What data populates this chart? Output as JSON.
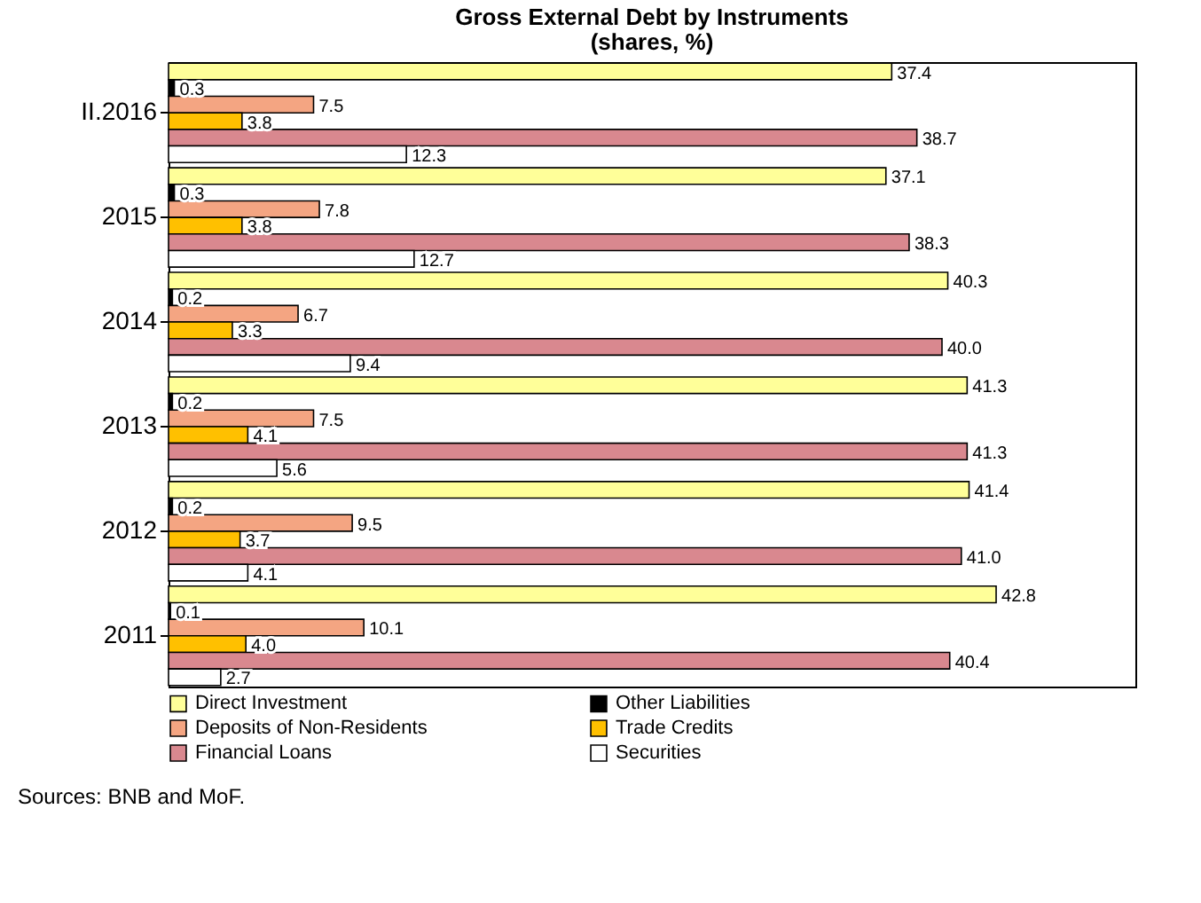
{
  "chart_data": {
    "type": "bar",
    "orientation": "horizontal",
    "title": "Gross External Debt by Instruments",
    "subtitle": "(shares, %)",
    "categories": [
      "II.2016",
      "2015",
      "2014",
      "2013",
      "2012",
      "2011"
    ],
    "series": [
      {
        "name": "Direct Investment",
        "color": "#ffff99",
        "values": [
          37.4,
          37.1,
          40.3,
          41.3,
          41.4,
          42.8
        ],
        "value_labels": [
          "37.4",
          "37.1",
          "40.3",
          "41.3",
          "41.4",
          "42.8"
        ]
      },
      {
        "name": "Other Liabilities",
        "color": "#000000",
        "values": [
          0.3,
          0.3,
          0.2,
          0.2,
          0.2,
          0.1
        ],
        "value_labels": [
          "0.3",
          "0.3",
          "0.2",
          "0.2",
          "0.2",
          "0.1"
        ]
      },
      {
        "name": "Deposits of Non-Residents",
        "color": "#f4a582",
        "values": [
          7.5,
          7.8,
          6.7,
          7.5,
          9.5,
          10.1
        ],
        "value_labels": [
          "7.5",
          "7.8",
          "6.7",
          "7.5",
          "9.5",
          "10.1"
        ]
      },
      {
        "name": "Trade Credits",
        "color": "#ffc000",
        "values": [
          3.8,
          3.8,
          3.3,
          4.1,
          3.7,
          4.0
        ],
        "value_labels": [
          "3.8",
          "3.8",
          "3.3",
          "4.1",
          "3.7",
          "4.0"
        ]
      },
      {
        "name": "Financial Loans",
        "color": "#d9888f",
        "values": [
          38.7,
          38.3,
          40.0,
          41.3,
          41.0,
          40.4
        ],
        "value_labels": [
          "38.7",
          "38.3",
          "40.0",
          "41.3",
          "41.0",
          "40.4"
        ]
      },
      {
        "name": "Securities",
        "color": "#ffffff",
        "values": [
          12.3,
          12.7,
          9.4,
          5.6,
          4.1,
          2.7
        ],
        "value_labels": [
          "12.3",
          "12.7",
          "9.4",
          "5.6",
          "4.1",
          "2.7"
        ]
      }
    ],
    "xlim": [
      0,
      50
    ],
    "tick_labels": "y",
    "legend": "bottom",
    "annotations": [
      "Sources: BNB and MoF."
    ]
  }
}
